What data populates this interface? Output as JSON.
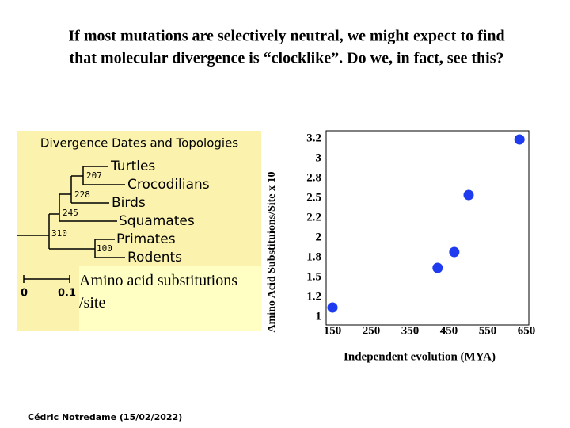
{
  "header": {
    "title_lines": [
      "If most mutations are selectively neutral, we might expect to find",
      "that molecular divergence is “clocklike”.  Do we, in fact, see this?"
    ]
  },
  "tree": {
    "title": "Divergence Dates and Topologies",
    "taxa": [
      "Turtles",
      "Crocodilians",
      "Birds",
      "Squamates",
      "Primates",
      "Rodents"
    ],
    "nodes": [
      "207",
      "228",
      "245",
      "310",
      "100"
    ],
    "scale": [
      "0",
      "0.1"
    ],
    "caption": "Amino acid substitutions /site"
  },
  "chart_data": {
    "type": "scatter",
    "ylabel": "Amino Acid Substituions/Site  x 10",
    "xlabel": "Independent evolution (MYA)",
    "x": [
      150,
      421,
      464,
      501,
      632
    ],
    "values": [
      1.12,
      1.62,
      1.82,
      2.54,
      3.24
    ],
    "color": "#1f3bf0",
    "xlim": [
      150,
      650
    ],
    "xticks": [
      150,
      250,
      350,
      450,
      550,
      650
    ],
    "ylim": [
      1,
      3.25
    ],
    "yticks": [
      1,
      {
        "value": 1.25,
        "label": "1.2"
      },
      1.5,
      {
        "value": 1.75,
        "label": "1.8"
      },
      2,
      {
        "value": 2.25,
        "label": "2.2"
      },
      2.5,
      {
        "value": 2.75,
        "label": "2.8"
      },
      3,
      {
        "value": 3.25,
        "label": "3.2"
      }
    ]
  },
  "footer": {
    "credit": "Cédric Notredame (15/02/2022)"
  }
}
